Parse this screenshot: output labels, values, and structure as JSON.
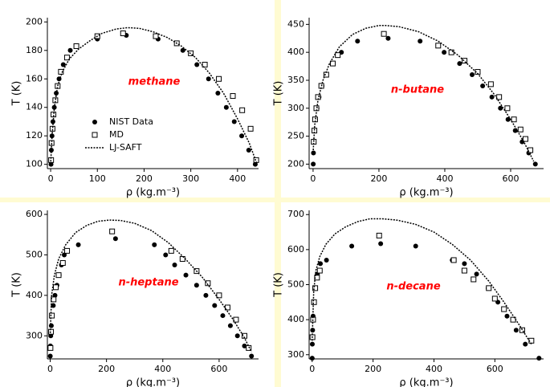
{
  "chart_data": [
    {
      "type": "scatter",
      "annotation": "methane",
      "x_label": "ρ (kg.m⁻³)",
      "y_label": "T (K)",
      "xlim": [
        -7,
        445
      ],
      "ylim": [
        97,
        203
      ],
      "xticks": [
        0,
        100,
        200,
        300,
        400
      ],
      "yticks": [
        100,
        120,
        140,
        160,
        180,
        200
      ],
      "legend": true,
      "series": [
        {
          "name": "NIST Data",
          "style": "filled-circle",
          "color": "#000000",
          "x": [
            0.8,
            1.5,
            2.9,
            4.9,
            7.8,
            12,
            18,
            27,
            42,
            100,
            162,
            230,
            283,
            313,
            338,
            358,
            376,
            393,
            409,
            424,
            438
          ],
          "values": [
            100,
            110,
            120,
            130,
            140,
            150,
            160,
            170,
            180,
            188,
            190.6,
            188,
            180,
            170,
            160,
            150,
            140,
            130,
            120,
            110,
            100
          ]
        },
        {
          "name": "MD",
          "style": "open-square",
          "color": "#000000",
          "x": [
            1,
            2,
            4,
            6,
            10,
            15,
            22,
            35,
            55,
            100,
            155,
            225,
            270,
            300,
            330,
            360,
            390,
            410,
            428,
            440
          ],
          "values": [
            103,
            115,
            125,
            135,
            145,
            155,
            165,
            175,
            183,
            190,
            192,
            190,
            185,
            178,
            170,
            160,
            148,
            138,
            125,
            103
          ]
        },
        {
          "name": "LJ-SAFT",
          "style": "dotted-line",
          "color": "#000000",
          "x": [
            0,
            3,
            8,
            15,
            25,
            40,
            60,
            85,
            110,
            140,
            165,
            190,
            220,
            250,
            280,
            310,
            340,
            370,
            400,
            425,
            442
          ],
          "values": [
            100,
            120,
            140,
            155,
            165,
            174,
            181,
            187,
            192,
            195,
            196,
            195.5,
            193,
            189,
            183,
            175,
            164,
            150,
            132,
            115,
            100
          ]
        }
      ]
    },
    {
      "type": "scatter",
      "annotation": "n-butane",
      "x_label": "ρ (kg.m⁻³)",
      "y_label": "T (K)",
      "xlim": [
        -12,
        700
      ],
      "ylim": [
        192,
        462
      ],
      "xticks": [
        0,
        200,
        400,
        600
      ],
      "yticks": [
        200,
        250,
        300,
        350,
        400,
        450
      ],
      "legend": false,
      "series": [
        {
          "style": "filled-circle",
          "color": "#000000",
          "x": [
            0.5,
            1.2,
            2.5,
            4.5,
            7.5,
            12,
            18,
            27,
            40,
            58,
            86,
            135,
            228,
            325,
            398,
            445,
            483,
            515,
            543,
            569,
            592,
            614,
            635,
            655,
            675
          ],
          "values": [
            200,
            220,
            240,
            260,
            280,
            300,
            320,
            340,
            360,
            380,
            400,
            420,
            425,
            420,
            400,
            380,
            360,
            340,
            320,
            300,
            280,
            260,
            240,
            220,
            200
          ]
        },
        {
          "style": "open-square",
          "color": "#000000",
          "x": [
            2,
            4,
            6,
            10,
            15,
            25,
            40,
            60,
            75,
            215,
            380,
            420,
            460,
            500,
            540,
            565,
            590,
            610,
            630,
            645,
            660
          ],
          "values": [
            240,
            260,
            280,
            300,
            320,
            340,
            360,
            380,
            395,
            433,
            412,
            400,
            385,
            365,
            343,
            320,
            300,
            280,
            262,
            245,
            225
          ]
        },
        {
          "style": "dotted-line",
          "color": "#000000",
          "x": [
            0,
            5,
            15,
            30,
            50,
            80,
            120,
            160,
            200,
            220,
            260,
            320,
            380,
            440,
            500,
            550,
            600,
            640,
            670
          ],
          "values": [
            220,
            270,
            315,
            350,
            380,
            410,
            432,
            443,
            448,
            448,
            446,
            437,
            420,
            395,
            362,
            325,
            280,
            240,
            205
          ]
        }
      ]
    },
    {
      "type": "scatter",
      "annotation": "n-heptane",
      "x_label": "ρ (kg.m⁻³)",
      "y_label": "T (K)",
      "xlim": [
        -10,
        740
      ],
      "ylim": [
        243,
        610
      ],
      "xticks": [
        0,
        200,
        400,
        600
      ],
      "yticks": [
        300,
        400,
        500,
        600
      ],
      "legend": false,
      "series": [
        {
          "style": "filled-circle",
          "color": "#000000",
          "x": [
            0.3,
            0.8,
            2,
            4,
            7,
            11,
            17,
            24,
            32,
            40,
            50,
            100,
            232,
            370,
            410,
            442,
            482,
            520,
            553,
            584,
            613,
            640,
            665,
            690,
            715
          ],
          "values": [
            250,
            275,
            300,
            325,
            350,
            375,
            400,
            425,
            450,
            475,
            500,
            525,
            540,
            525,
            500,
            475,
            450,
            425,
            400,
            375,
            350,
            325,
            300,
            275,
            250
          ]
        },
        {
          "style": "open-square",
          "color": "#000000",
          "x": [
            1,
            3,
            6,
            12,
            20,
            30,
            45,
            60,
            220,
            430,
            470,
            520,
            560,
            600,
            630,
            660,
            690,
            705
          ],
          "values": [
            270,
            310,
            350,
            390,
            420,
            450,
            480,
            510,
            558,
            510,
            490,
            460,
            430,
            400,
            370,
            340,
            300,
            270
          ]
        },
        {
          "style": "dotted-line",
          "color": "#000000",
          "x": [
            0,
            5,
            15,
            30,
            55,
            90,
            130,
            170,
            210,
            250,
            300,
            360,
            420,
            480,
            540,
            600,
            650,
            690,
            715
          ],
          "values": [
            300,
            400,
            450,
            490,
            525,
            555,
            573,
            583,
            586,
            585,
            578,
            560,
            530,
            490,
            445,
            390,
            340,
            295,
            260
          ]
        }
      ]
    },
    {
      "type": "scatter",
      "annotation": "n-decane",
      "x_label": "ρ (kg.m⁻³)",
      "y_label": "T (K)",
      "xlim": [
        -10,
        760
      ],
      "ylim": [
        288,
        712
      ],
      "xticks": [
        0,
        200,
        400,
        600
      ],
      "yticks": [
        300,
        400,
        500,
        600,
        700
      ],
      "legend": false,
      "series": [
        {
          "style": "filled-circle",
          "color": "#000000",
          "x": [
            0.1,
            0.5,
            1.5,
            3,
            6,
            10,
            17,
            27,
            47,
            130,
            225,
            340,
            460,
            500,
            540,
            578,
            610,
            640,
            670,
            700,
            745
          ],
          "values": [
            290,
            330,
            370,
            410,
            450,
            490,
            530,
            560,
            570,
            610,
            617,
            610,
            570,
            560,
            530,
            490,
            450,
            410,
            370,
            330,
            290
          ]
        },
        {
          "style": "open-square",
          "color": "#000000",
          "x": [
            1,
            3,
            6,
            10,
            16,
            25,
            220,
            465,
            500,
            530,
            580,
            600,
            630,
            660,
            690,
            720
          ],
          "values": [
            350,
            400,
            450,
            490,
            520,
            540,
            640,
            570,
            540,
            515,
            490,
            460,
            430,
            400,
            370,
            340
          ]
        },
        {
          "style": "dotted-line",
          "color": "#000000",
          "x": [
            0,
            5,
            12,
            25,
            45,
            75,
            110,
            150,
            190,
            230,
            280,
            340,
            400,
            460,
            520,
            580,
            630,
            680,
            720
          ],
          "values": [
            340,
            480,
            540,
            580,
            615,
            645,
            665,
            680,
            688,
            688,
            684,
            672,
            650,
            615,
            570,
            510,
            450,
            385,
            330
          ]
        }
      ]
    }
  ]
}
